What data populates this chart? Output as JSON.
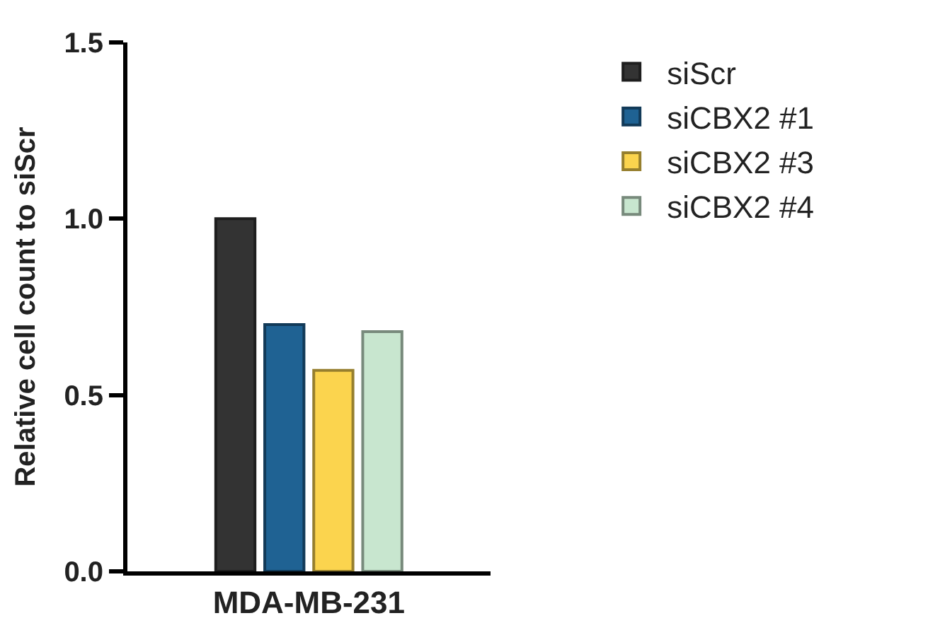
{
  "chart_data": {
    "type": "bar",
    "ylabel": "Relative cell count to siScr",
    "categories": [
      "MDA-MB-231"
    ],
    "series": [
      {
        "name": "siScr",
        "color": "#333333",
        "values": [
          1.0
        ]
      },
      {
        "name": "siCBX2 #1",
        "color": "#1f6293",
        "values": [
          0.7
        ]
      },
      {
        "name": "siCBX2 #3",
        "color": "#fbd44e",
        "values": [
          0.57
        ]
      },
      {
        "name": "siCBX2 #4",
        "color": "#c8e6cf",
        "values": [
          0.68
        ]
      }
    ],
    "ylim": [
      0,
      1.5
    ],
    "yticks": [
      {
        "value": 0,
        "label": "0.0"
      },
      {
        "value": 0.5,
        "label": "0.5"
      },
      {
        "value": 1,
        "label": "1.0"
      },
      {
        "value": 1.5,
        "label": "1.5"
      }
    ],
    "grid": false,
    "legend": "right"
  }
}
